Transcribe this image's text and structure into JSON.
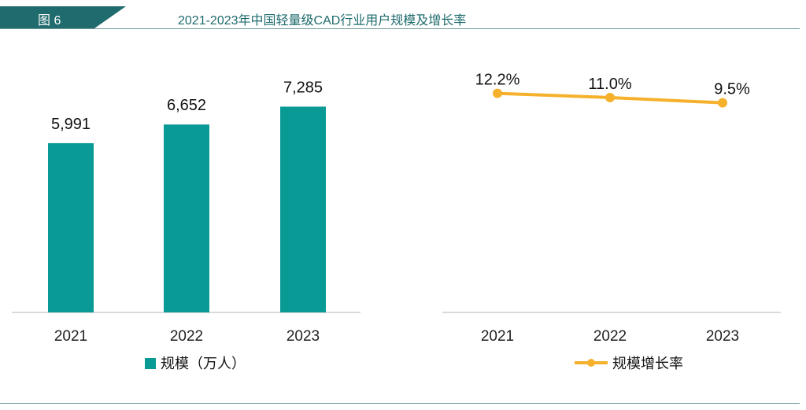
{
  "header": {
    "figure_label": "图 6",
    "title": "2021-2023年中国轻量级CAD行业用户规模及增长率"
  },
  "colors": {
    "bar": "#0a9a96",
    "line": "#f5b12b",
    "header_band": "#1f6b6d",
    "rule": "#6f9a99"
  },
  "chart_data": [
    {
      "type": "bar",
      "categories": [
        "2021",
        "2022",
        "2023"
      ],
      "series": [
        {
          "name": "规模（万人）",
          "values": [
            5991,
            6652,
            7285
          ]
        }
      ],
      "value_labels": [
        "5,991",
        "6,652",
        "7,285"
      ],
      "ylim": [
        0,
        7800
      ],
      "grid": false,
      "legend": {
        "label": "规模（万人）",
        "placement": "bottom"
      }
    },
    {
      "type": "line",
      "categories": [
        "2021",
        "2022",
        "2023"
      ],
      "series": [
        {
          "name": "规模增长率",
          "values": [
            12.2,
            11.0,
            9.5
          ]
        }
      ],
      "value_labels": [
        "12.2%",
        "11.0%",
        "9.5%"
      ],
      "ylim": [
        -50,
        13
      ],
      "grid": false,
      "legend": {
        "label": "规模增长率",
        "placement": "bottom"
      }
    }
  ]
}
